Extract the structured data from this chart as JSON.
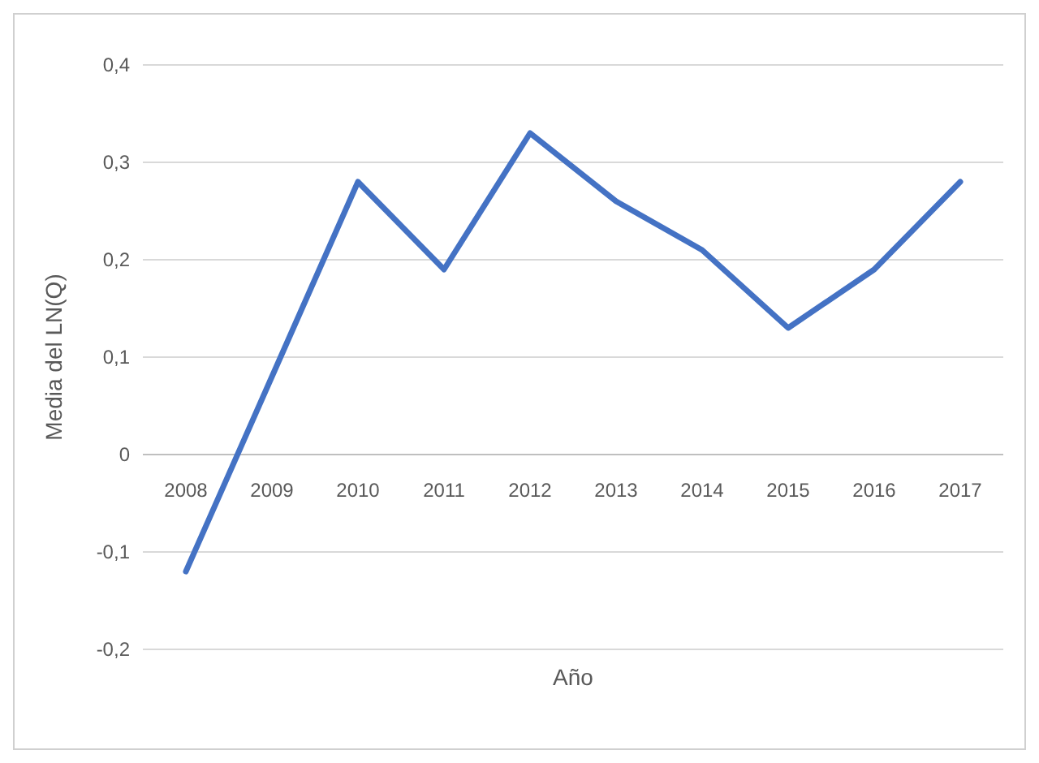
{
  "chart_data": {
    "type": "line",
    "xlabel": "Año",
    "ylabel": "Media del LN(Q)",
    "categories": [
      "2008",
      "2009",
      "2010",
      "2011",
      "2012",
      "2013",
      "2014",
      "2015",
      "2016",
      "2017"
    ],
    "series": [
      {
        "color": "#4472c4",
        "values": [
          -0.12,
          0.08,
          0.28,
          0.19,
          0.33,
          0.26,
          0.21,
          0.13,
          0.19,
          0.28
        ]
      }
    ],
    "ylim": [
      -0.2,
      0.4
    ],
    "yticks": [
      {
        "value": -0.2,
        "label": "-0,2"
      },
      {
        "value": -0.1,
        "label": "-0,1"
      },
      {
        "value": 0,
        "label": "0"
      },
      {
        "value": 0.1,
        "label": "0,1"
      },
      {
        "value": 0.2,
        "label": "0,2"
      },
      {
        "value": 0.3,
        "label": "0,3"
      },
      {
        "value": 0.4,
        "label": "0,4"
      }
    ],
    "grid": "y",
    "marker": "none",
    "line_style": "solid"
  }
}
